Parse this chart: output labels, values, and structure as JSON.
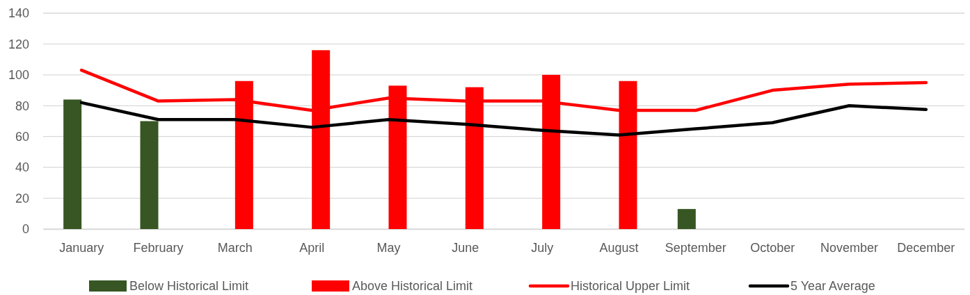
{
  "chart_data": {
    "type": "bar",
    "categories": [
      "January",
      "February",
      "March",
      "April",
      "May",
      "June",
      "July",
      "August",
      "September",
      "October",
      "November",
      "December"
    ],
    "series": [
      {
        "name": "Below Historical Limit",
        "color": "#375623",
        "values": [
          84,
          70,
          null,
          null,
          null,
          null,
          null,
          null,
          13,
          null,
          null,
          null
        ]
      },
      {
        "name": "Above Historical Limit",
        "color": "#ff0000",
        "values": [
          null,
          null,
          96,
          116,
          93,
          92,
          100,
          96,
          null,
          null,
          null,
          null
        ]
      },
      {
        "name": "Historical Upper Limit",
        "type": "line",
        "color": "#ff0000",
        "values": [
          103,
          83,
          84,
          77,
          85,
          83,
          83,
          77,
          77,
          90,
          94,
          95
        ]
      },
      {
        "name": "5 Year Average",
        "type": "line",
        "color": "#000000",
        "values": [
          82,
          71,
          71,
          66,
          71,
          68,
          64,
          61,
          65,
          69,
          80,
          77.5
        ]
      }
    ],
    "ylim": [
      0,
      140
    ],
    "yticks": [
      0,
      20,
      40,
      60,
      80,
      100,
      120,
      140
    ],
    "grid": "y",
    "legend": "bottom",
    "marker": "none",
    "line_style": "solid"
  }
}
